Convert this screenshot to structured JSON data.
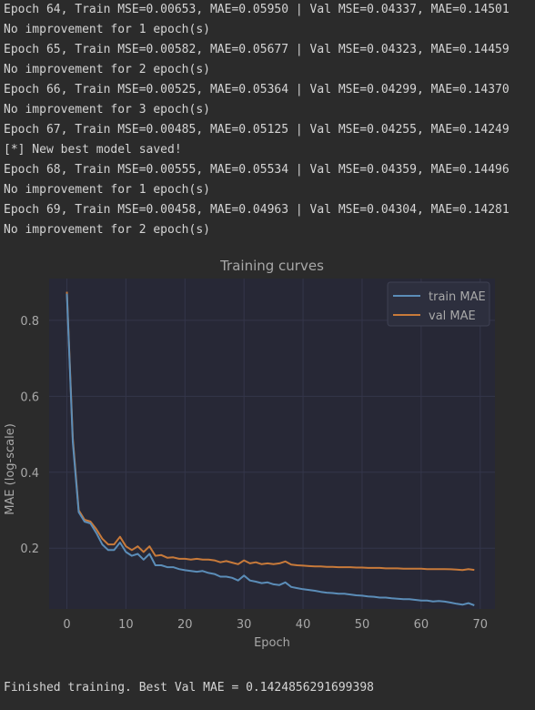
{
  "console": {
    "lines": [
      "Epoch 64, Train MSE=0.00653, MAE=0.05950 | Val MSE=0.04337, MAE=0.14501",
      "No improvement for 1 epoch(s)",
      "Epoch 65, Train MSE=0.00582, MAE=0.05677 | Val MSE=0.04323, MAE=0.14459",
      "No improvement for 2 epoch(s)",
      "Epoch 66, Train MSE=0.00525, MAE=0.05364 | Val MSE=0.04299, MAE=0.14370",
      "No improvement for 3 epoch(s)",
      "Epoch 67, Train MSE=0.00485, MAE=0.05125 | Val MSE=0.04255, MAE=0.14249",
      "[*] New best model saved!",
      "Epoch 68, Train MSE=0.00555, MAE=0.05534 | Val MSE=0.04359, MAE=0.14496",
      "No improvement for 1 epoch(s)",
      "Epoch 69, Train MSE=0.00458, MAE=0.04963 | Val MSE=0.04304, MAE=0.14281",
      "No improvement for 2 epoch(s)"
    ],
    "footer": "Finished training. Best Val MAE = 0.1424856291699398"
  },
  "colors": {
    "background": "#2b2b2b",
    "plot_bg": "#272836",
    "train": "#5b8db8",
    "val": "#c87a3a"
  },
  "chart_data": {
    "type": "line",
    "title": "Training curves",
    "xlabel": "Epoch",
    "ylabel": "MAE (log-scale)",
    "xlim": [
      -3,
      72.5
    ],
    "ylim": [
      0.04,
      0.91
    ],
    "xticks": [
      0,
      10,
      20,
      30,
      40,
      50,
      60,
      70
    ],
    "yticks": [
      0.2,
      0.4,
      0.6,
      0.8
    ],
    "grid": true,
    "legend": "top-right",
    "x": [
      0,
      1,
      2,
      3,
      4,
      5,
      6,
      7,
      8,
      9,
      10,
      11,
      12,
      13,
      14,
      15,
      16,
      17,
      18,
      19,
      20,
      21,
      22,
      23,
      24,
      25,
      26,
      27,
      28,
      29,
      30,
      31,
      32,
      33,
      34,
      35,
      36,
      37,
      38,
      39,
      40,
      41,
      42,
      43,
      44,
      45,
      46,
      47,
      48,
      49,
      50,
      51,
      52,
      53,
      54,
      55,
      56,
      57,
      58,
      59,
      60,
      61,
      62,
      63,
      64,
      65,
      66,
      67,
      68,
      69
    ],
    "series": [
      {
        "name": "train MAE",
        "values": [
          0.87,
          0.48,
          0.295,
          0.27,
          0.265,
          0.24,
          0.21,
          0.195,
          0.195,
          0.215,
          0.19,
          0.18,
          0.185,
          0.17,
          0.185,
          0.155,
          0.155,
          0.15,
          0.15,
          0.145,
          0.142,
          0.14,
          0.138,
          0.14,
          0.135,
          0.132,
          0.125,
          0.125,
          0.122,
          0.115,
          0.128,
          0.115,
          0.112,
          0.108,
          0.11,
          0.105,
          0.103,
          0.11,
          0.098,
          0.095,
          0.092,
          0.09,
          0.088,
          0.085,
          0.083,
          0.082,
          0.08,
          0.08,
          0.078,
          0.076,
          0.075,
          0.073,
          0.072,
          0.07,
          0.07,
          0.068,
          0.067,
          0.066,
          0.066,
          0.064,
          0.062,
          0.062,
          0.06,
          0.061,
          0.0595,
          0.05677,
          0.05364,
          0.05125,
          0.05534,
          0.04963
        ]
      },
      {
        "name": "val MAE",
        "values": [
          0.875,
          0.49,
          0.3,
          0.275,
          0.27,
          0.25,
          0.225,
          0.21,
          0.21,
          0.23,
          0.205,
          0.195,
          0.205,
          0.19,
          0.205,
          0.18,
          0.182,
          0.175,
          0.176,
          0.172,
          0.172,
          0.17,
          0.172,
          0.17,
          0.17,
          0.168,
          0.163,
          0.166,
          0.162,
          0.158,
          0.168,
          0.16,
          0.163,
          0.158,
          0.16,
          0.158,
          0.16,
          0.165,
          0.157,
          0.155,
          0.154,
          0.153,
          0.152,
          0.152,
          0.151,
          0.151,
          0.15,
          0.15,
          0.15,
          0.149,
          0.149,
          0.148,
          0.148,
          0.148,
          0.147,
          0.147,
          0.147,
          0.146,
          0.146,
          0.146,
          0.146,
          0.145,
          0.145,
          0.145,
          0.14501,
          0.14459,
          0.1437,
          0.14249,
          0.14496,
          0.14281
        ]
      }
    ]
  }
}
